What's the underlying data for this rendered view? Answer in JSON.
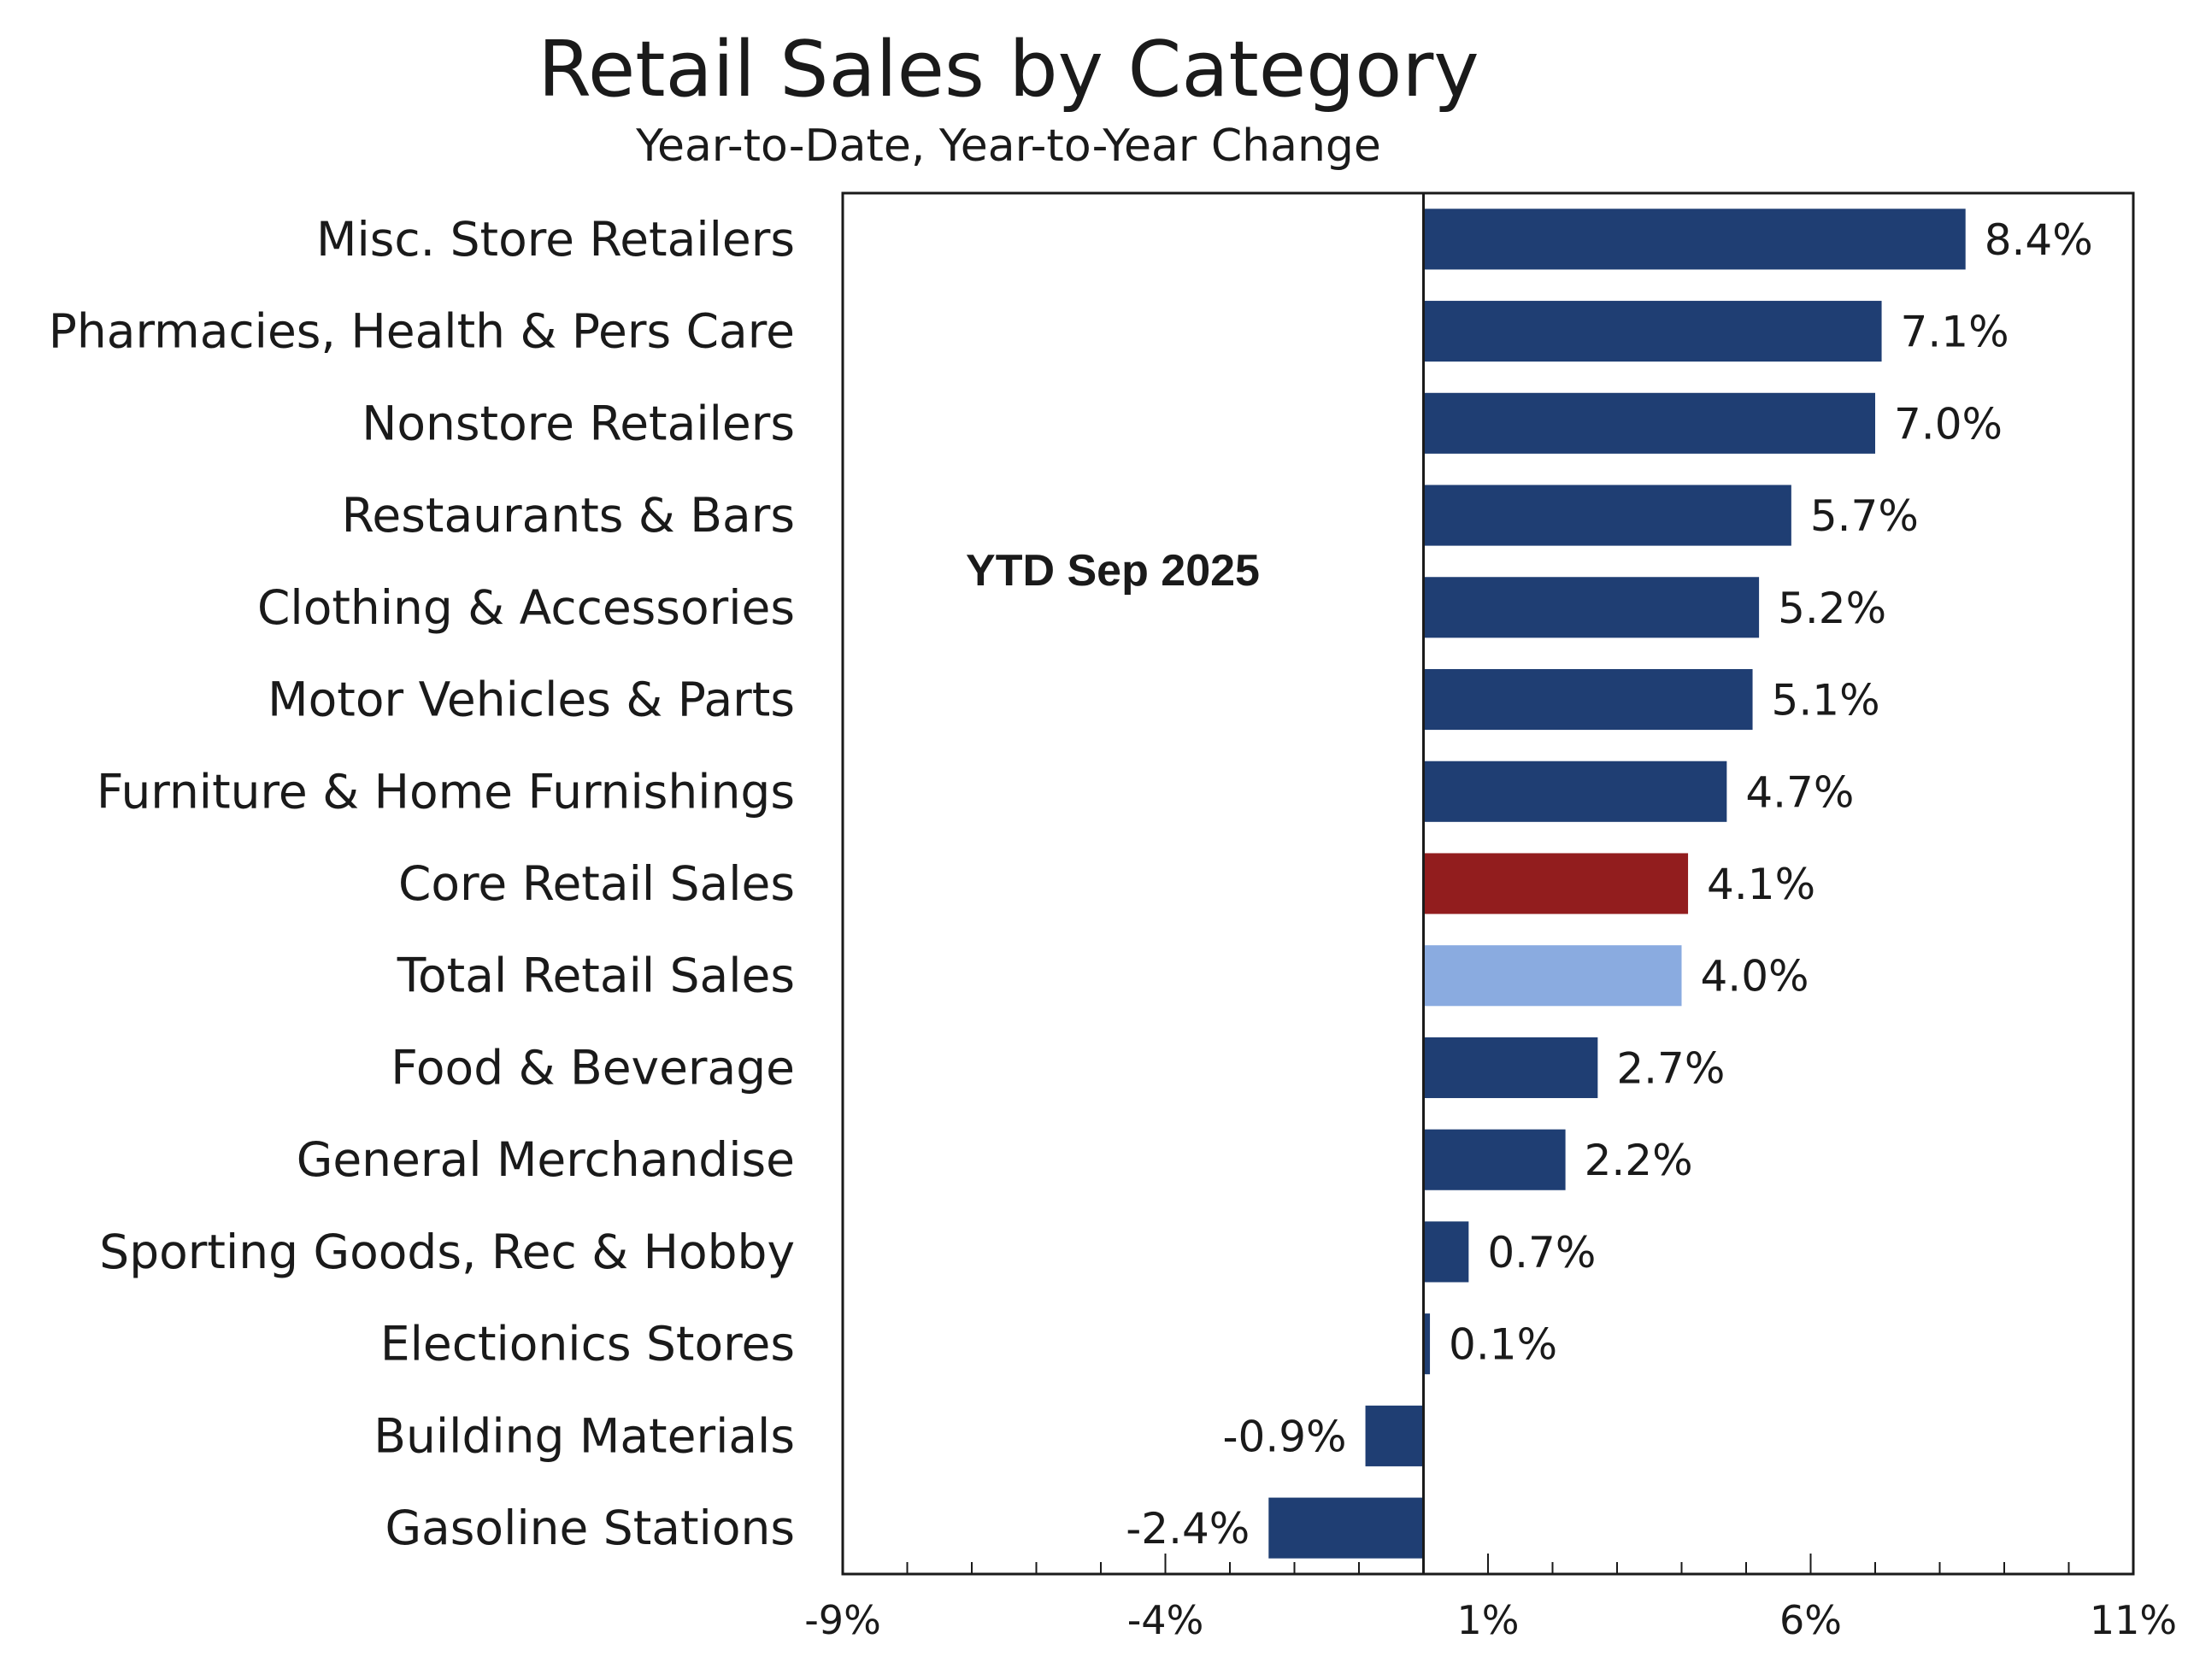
{
  "chart_data": {
    "type": "bar",
    "orientation": "horizontal",
    "title": "Retail Sales by Category",
    "subtitle": "Year-to-Date, Year-to-Year Change",
    "annotation": "YTD Sep 2025",
    "xlim": [
      -9,
      11
    ],
    "major_ticks": [
      -9,
      -4,
      1,
      6,
      11
    ],
    "tick_labels": [
      "-9%",
      "-4%",
      "1%",
      "6%",
      "11%"
    ],
    "minor_tick_step": 1,
    "baseline": 0,
    "colors": {
      "default": "#1f3e73",
      "Core Retail Sales": "#921d1e",
      "Total Retail Sales": "#8aabe0"
    },
    "categories": [
      "Misc. Store Retailers",
      "Pharmacies, Health & Pers Care",
      "Nonstore Retailers",
      "Restaurants & Bars",
      "Clothing & Accessories",
      "Motor Vehicles & Parts",
      "Furniture & Home Furnishings",
      "Core Retail Sales",
      "Total Retail Sales",
      "Food & Beverage ",
      "General Merchandise",
      "Sporting Goods, Rec & Hobby",
      "Electionics Stores",
      "Building Materials",
      "Gasoline Stations"
    ],
    "values": [
      8.4,
      7.1,
      7.0,
      5.7,
      5.2,
      5.1,
      4.7,
      4.1,
      4.0,
      2.7,
      2.2,
      0.7,
      0.1,
      -0.9,
      -2.4
    ],
    "value_labels": [
      "8.4%",
      "7.1%",
      "7.0%",
      "5.7%",
      "5.2%",
      "5.1%",
      "4.7%",
      "4.1%",
      "4.0%",
      "2.7%",
      "2.2%",
      "0.7%",
      "0.1%",
      "-0.9%",
      "-2.4%"
    ]
  }
}
